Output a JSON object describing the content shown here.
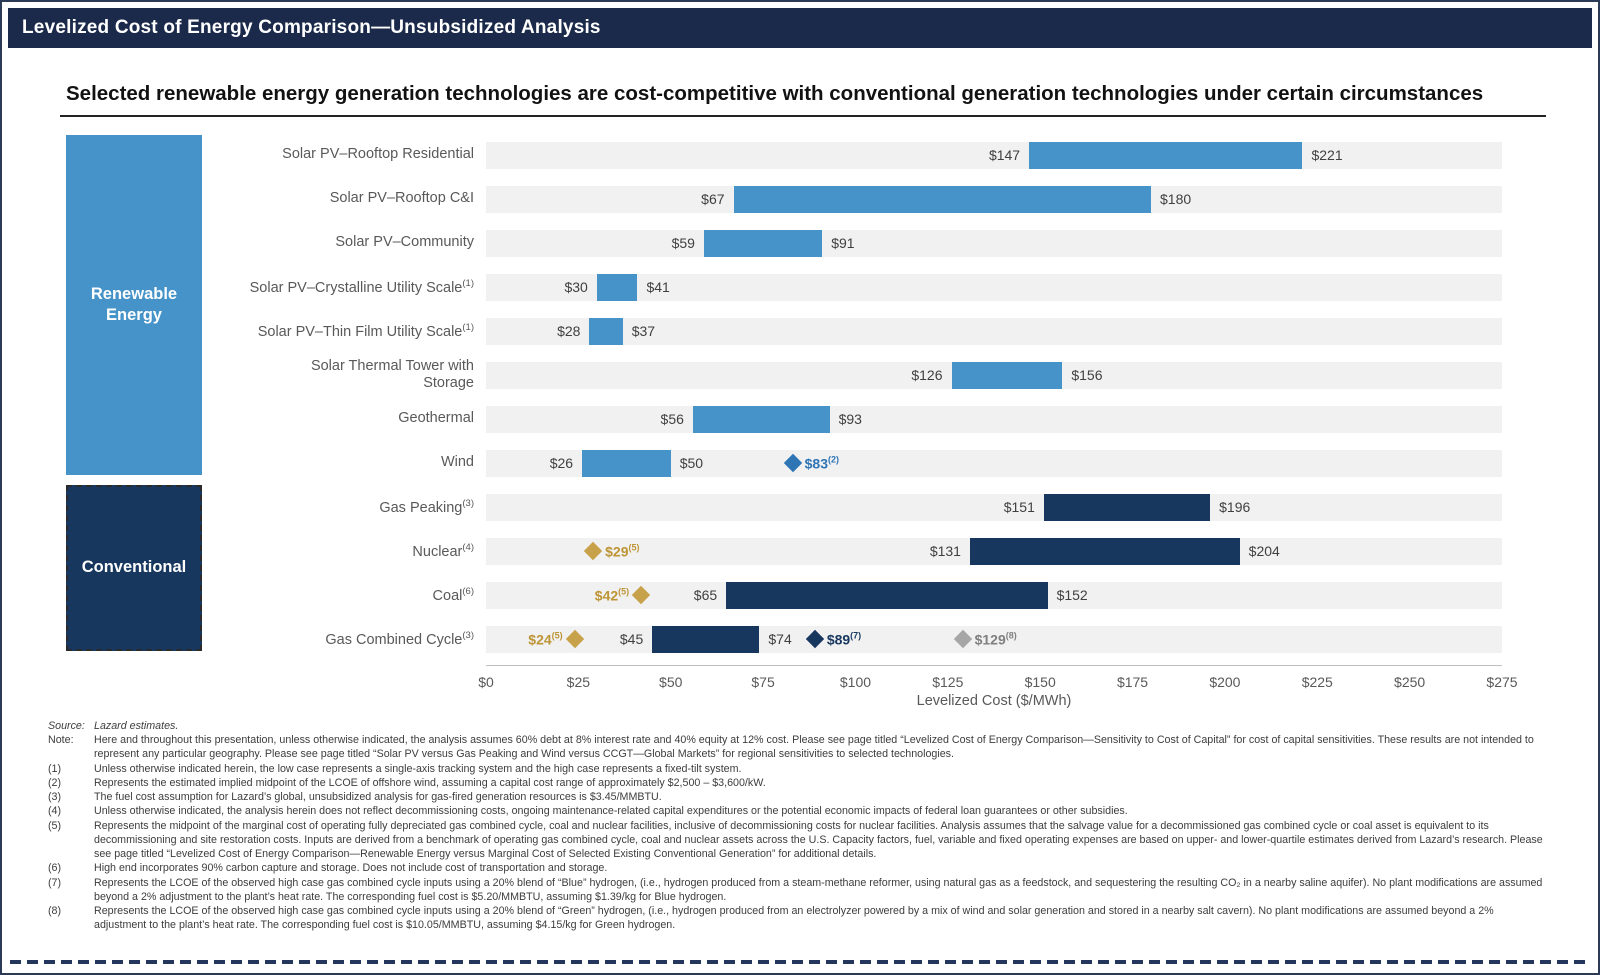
{
  "header": {
    "title": "Levelized Cost of Energy Comparison—Unsubsidized Analysis"
  },
  "subtitle": "Selected renewable energy generation technologies are cost-competitive with conventional generation technologies under certain circumstances",
  "chart_data": {
    "type": "range-bar",
    "xlabel": "Levelized Cost ($/MWh)",
    "xlim": [
      0,
      275
    ],
    "x_tick_values": [
      0,
      25,
      50,
      75,
      100,
      125,
      150,
      175,
      200,
      225,
      250,
      275
    ],
    "x_tick_labels": [
      "$0",
      "$25",
      "$50",
      "$75",
      "$100",
      "$125",
      "$150",
      "$175",
      "$200",
      "$225",
      "$250",
      "$275"
    ],
    "grid": false,
    "legend": "left category blocks",
    "groups": [
      {
        "key": "renewable",
        "name": "Renewable Energy",
        "color": "#4593C8"
      },
      {
        "key": "conventional",
        "name": "Conventional",
        "color": "#17375E"
      }
    ],
    "rows": [
      {
        "label": "Solar PV–Rooftop Residential",
        "sup": "",
        "group": "renewable",
        "low": 147,
        "high": 221
      },
      {
        "label": "Solar PV–Rooftop C&I",
        "sup": "",
        "group": "renewable",
        "low": 67,
        "high": 180
      },
      {
        "label": "Solar PV–Community",
        "sup": "",
        "group": "renewable",
        "low": 59,
        "high": 91
      },
      {
        "label": "Solar PV–Crystalline Utility Scale",
        "sup": "(1)",
        "group": "renewable",
        "low": 30,
        "high": 41
      },
      {
        "label": "Solar PV–Thin Film Utility Scale",
        "sup": "(1)",
        "group": "renewable",
        "low": 28,
        "high": 37
      },
      {
        "label": "Solar Thermal Tower with\nStorage",
        "sup": "",
        "group": "renewable",
        "low": 126,
        "high": 156
      },
      {
        "label": "Geothermal",
        "sup": "",
        "group": "renewable",
        "low": 56,
        "high": 93
      },
      {
        "label": "Wind",
        "sup": "",
        "group": "renewable",
        "low": 26,
        "high": 50,
        "markers": [
          {
            "value": 83,
            "sup": "(2)",
            "color": "#2E75B6",
            "label_color": "#2E75B6",
            "side": "right"
          }
        ]
      },
      {
        "label": "Gas Peaking",
        "sup": "(3)",
        "group": "conventional",
        "low": 151,
        "high": 196
      },
      {
        "label": "Nuclear",
        "sup": "(4)",
        "group": "conventional",
        "low": 131,
        "high": 204,
        "markers": [
          {
            "value": 29,
            "sup": "(5)",
            "color": "#C7A24A",
            "label_color": "#BD9535",
            "side": "right"
          }
        ]
      },
      {
        "label": "Coal",
        "sup": "(6)",
        "group": "conventional",
        "low": 65,
        "high": 152,
        "markers": [
          {
            "value": 42,
            "sup": "(5)",
            "color": "#C7A24A",
            "label_color": "#BD9535",
            "side": "left"
          }
        ]
      },
      {
        "label": "Gas Combined Cycle",
        "sup": "(3)",
        "group": "conventional",
        "low": 45,
        "high": 74,
        "markers": [
          {
            "value": 24,
            "sup": "(5)",
            "color": "#C7A24A",
            "label_color": "#BD9535",
            "side": "left"
          },
          {
            "value": 89,
            "sup": "(7)",
            "color": "#17375E",
            "label_color": "#17375E",
            "side": "right"
          },
          {
            "value": 129,
            "sup": "(8)",
            "color": "#A6A6A6",
            "label_color": "#7F7F7F",
            "side": "right"
          }
        ]
      }
    ]
  },
  "footnotes": [
    {
      "tag": "Source:",
      "italic": true,
      "text": "Lazard estimates."
    },
    {
      "tag": "Note:",
      "text": "Here and throughout this presentation, unless otherwise indicated, the analysis assumes 60% debt at 8% interest rate and 40% equity at 12% cost. Please see page titled “Levelized Cost of Energy Comparison—Sensitivity to Cost of Capital” for cost of capital sensitivities. These results are not intended to represent any particular geography. Please see page titled “Solar PV versus Gas Peaking and Wind versus CCGT—Global Markets” for regional sensitivities to selected technologies."
    },
    {
      "tag": "(1)",
      "text": "Unless otherwise indicated herein, the low case represents a single-axis tracking system and the high case represents a fixed-tilt system."
    },
    {
      "tag": "(2)",
      "text": "Represents the estimated implied midpoint of the LCOE of offshore wind, assuming a capital cost range of approximately $2,500 – $3,600/kW."
    },
    {
      "tag": "(3)",
      "text": "The fuel cost assumption for Lazard’s global, unsubsidized analysis for gas-fired generation resources is $3.45/MMBTU."
    },
    {
      "tag": "(4)",
      "text": "Unless otherwise indicated, the analysis herein does not reflect decommissioning costs, ongoing maintenance-related capital expenditures or the potential economic impacts of federal loan guarantees or other subsidies."
    },
    {
      "tag": "(5)",
      "text": "Represents the midpoint of the marginal cost of operating fully depreciated gas combined cycle, coal and nuclear facilities, inclusive of decommissioning costs for nuclear facilities. Analysis assumes that the salvage value for a decommissioned gas combined cycle or coal asset is equivalent to its decommissioning and site restoration costs. Inputs are derived from a benchmark of operating gas combined cycle, coal and nuclear assets across the U.S. Capacity factors, fuel, variable and fixed operating expenses are based on upper- and lower-quartile estimates derived from Lazard’s research. Please see page titled “Levelized Cost of Energy Comparison—Renewable Energy versus Marginal Cost of Selected Existing Conventional Generation” for additional details."
    },
    {
      "tag": "(6)",
      "text": "High end incorporates 90% carbon capture and storage. Does not include cost of transportation and storage."
    },
    {
      "tag": "(7)",
      "text": "Represents the LCOE of the observed high case gas combined cycle inputs using a 20% blend of “Blue” hydrogen, (i.e., hydrogen produced from a steam-methane reformer, using natural gas as a feedstock, and sequestering the resulting CO₂ in a nearby saline aquifer). No plant modifications are assumed beyond a 2% adjustment to the plant’s heat rate. The corresponding fuel cost is $5.20/MMBTU, assuming $1.39/kg for Blue hydrogen."
    },
    {
      "tag": "(8)",
      "text": "Represents the LCOE of the observed high case gas combined cycle inputs using a 20% blend of “Green” hydrogen, (i.e., hydrogen produced from an electrolyzer powered by a mix of wind and solar generation and stored in a nearby salt cavern). No plant modifications are assumed beyond a 2% adjustment to the plant’s heat rate. The corresponding fuel cost is $10.05/MMBTU, assuming $4.15/kg for Green hydrogen."
    }
  ]
}
